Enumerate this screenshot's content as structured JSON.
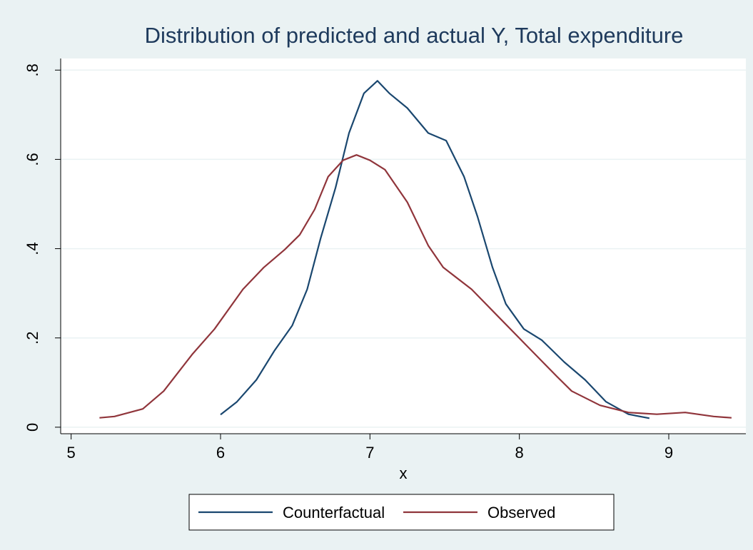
{
  "chart_data": {
    "type": "line",
    "title": "Distribution of predicted and actual Y, Total expenditure",
    "xlabel": "x",
    "xlim": [
      4.93,
      9.516
    ],
    "ylim": [
      -0.0146,
      0.826
    ],
    "xticks": [
      5,
      6,
      7,
      8,
      9
    ],
    "yticks": [
      0,
      {
        "value": 0.2,
        "label": ".2"
      },
      {
        "value": 0.4,
        "label": ".4"
      },
      {
        "value": 0.6,
        "label": ".6"
      },
      {
        "value": 0.8,
        "label": ".8"
      }
    ],
    "grid": true,
    "legend": "bottom",
    "series": [
      {
        "name": "Counterfactual",
        "color": "#1a476f",
        "x": [
          6.0,
          6.11,
          6.24,
          6.36,
          6.48,
          6.58,
          6.67,
          6.77,
          6.86,
          6.96,
          7.05,
          7.13,
          7.25,
          7.39,
          7.51,
          7.63,
          7.72,
          7.82,
          7.91,
          8.03,
          8.15,
          8.3,
          8.44,
          8.58,
          8.73,
          8.87
        ],
        "values": [
          0.028,
          0.057,
          0.106,
          0.171,
          0.228,
          0.309,
          0.423,
          0.537,
          0.659,
          0.748,
          0.776,
          0.748,
          0.715,
          0.659,
          0.642,
          0.561,
          0.472,
          0.358,
          0.276,
          0.22,
          0.195,
          0.146,
          0.106,
          0.057,
          0.029,
          0.02
        ]
      },
      {
        "name": "Observed",
        "color": "#90353b",
        "x": [
          5.19,
          5.29,
          5.48,
          5.62,
          5.81,
          5.96,
          6.15,
          6.29,
          6.43,
          6.53,
          6.63,
          6.72,
          6.82,
          6.91,
          7.0,
          7.1,
          7.25,
          7.39,
          7.49,
          7.68,
          7.87,
          8.06,
          8.25,
          8.35,
          8.54,
          8.73,
          8.92,
          9.11,
          9.3,
          9.42
        ],
        "values": [
          0.021,
          0.024,
          0.041,
          0.081,
          0.163,
          0.22,
          0.309,
          0.358,
          0.398,
          0.431,
          0.488,
          0.561,
          0.598,
          0.61,
          0.598,
          0.577,
          0.504,
          0.407,
          0.358,
          0.309,
          0.244,
          0.179,
          0.114,
          0.081,
          0.049,
          0.033,
          0.029,
          0.033,
          0.024,
          0.021
        ]
      }
    ]
  }
}
